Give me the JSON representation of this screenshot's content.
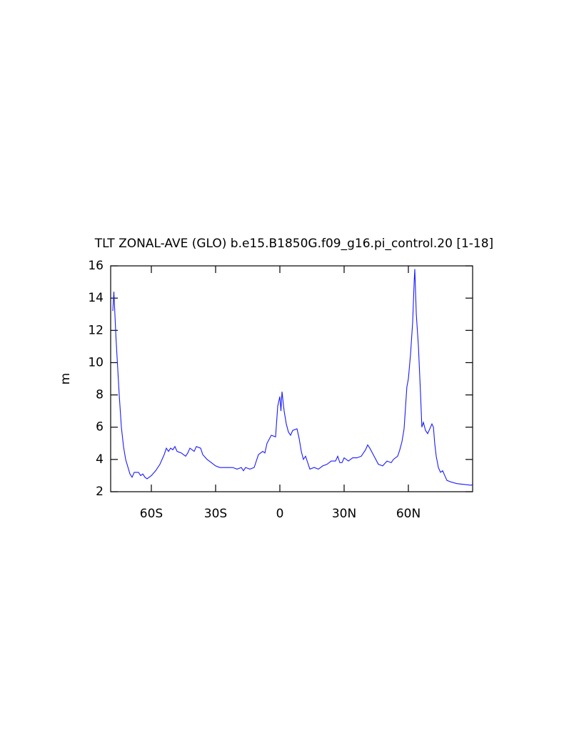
{
  "chart_data": {
    "type": "line",
    "title": "TLT ZONAL-AVE (GLO) b.e15.B1850G.f09_g16.pi_control.20 [1-18]",
    "y_label": "m",
    "xlim": [
      -79,
      90
    ],
    "ylim": [
      2,
      16
    ],
    "xticks": [
      {
        "value": -60,
        "label": "60S"
      },
      {
        "value": -30,
        "label": "30S"
      },
      0,
      {
        "value": 30,
        "label": "30N"
      },
      {
        "value": 60,
        "label": "60N"
      }
    ],
    "yticks": [
      2,
      4,
      6,
      8,
      10,
      12,
      14,
      16
    ],
    "x": [
      -78,
      -77.5,
      -76.5,
      -75,
      -74,
      -73,
      -72,
      -70,
      -69,
      -68,
      -66,
      -65,
      -64,
      -63,
      -62,
      -60,
      -58,
      -56,
      -54,
      -53,
      -52,
      -51,
      -50,
      -49,
      -48,
      -46,
      -44,
      -43,
      -42,
      -41,
      -40,
      -39,
      -37,
      -36,
      -34,
      -32,
      -30,
      -28,
      -25,
      -22,
      -20,
      -18,
      -17,
      -16,
      -14,
      -12,
      -10,
      -8,
      -7,
      -6,
      -4,
      -2,
      -1,
      0,
      0.5,
      1,
      2,
      3,
      4,
      5,
      6,
      8,
      9,
      10,
      11,
      12,
      13,
      14,
      16,
      18,
      20,
      22,
      24,
      26,
      27,
      28,
      29,
      30,
      32,
      34,
      36,
      38,
      40,
      41,
      42,
      44,
      46,
      48,
      50,
      52,
      53,
      55,
      56,
      57,
      58,
      59.3,
      60,
      61,
      62,
      62.7,
      63,
      63.7,
      64.7,
      65.7,
      66.3,
      67,
      68,
      69,
      70,
      71,
      71.7,
      72.3,
      73,
      74,
      75,
      76,
      77,
      78,
      80,
      82.7,
      86,
      89.3,
      90
    ],
    "series": [
      {
        "name": "TLT",
        "color": "#1a1aff",
        "values": [
          13.2,
          14.4,
          11.5,
          8,
          6,
          4.8,
          4,
          3.1,
          2.9,
          3.2,
          3.2,
          3.0,
          3.1,
          2.9,
          2.8,
          3.0,
          3.3,
          3.7,
          4.3,
          4.7,
          4.5,
          4.7,
          4.6,
          4.8,
          4.5,
          4.4,
          4.2,
          4.4,
          4.7,
          4.6,
          4.5,
          4.8,
          4.7,
          4.3,
          4.0,
          3.8,
          3.6,
          3.5,
          3.5,
          3.5,
          3.4,
          3.5,
          3.3,
          3.5,
          3.4,
          3.5,
          4.3,
          4.5,
          4.4,
          5.0,
          5.5,
          5.4,
          7.3,
          7.9,
          7.0,
          8.2,
          7.0,
          6.2,
          5.7,
          5.5,
          5.8,
          5.9,
          5.3,
          4.5,
          4.0,
          4.2,
          3.8,
          3.4,
          3.5,
          3.4,
          3.6,
          3.7,
          3.9,
          3.9,
          4.2,
          3.8,
          3.8,
          4.1,
          3.9,
          4.1,
          4.1,
          4.2,
          4.6,
          4.9,
          4.7,
          4.2,
          3.7,
          3.6,
          3.9,
          3.8,
          4.0,
          4.2,
          4.6,
          5.1,
          5.9,
          8.5,
          9.0,
          10.5,
          12.5,
          15.0,
          15.8,
          13.0,
          11.0,
          8.0,
          6.0,
          6.3,
          5.8,
          5.6,
          5.9,
          6.2,
          6.0,
          5.0,
          4.2,
          3.5,
          3.2,
          3.3,
          3.0,
          2.7,
          2.6,
          2.5,
          2.45,
          2.4,
          2.45
        ]
      }
    ]
  }
}
